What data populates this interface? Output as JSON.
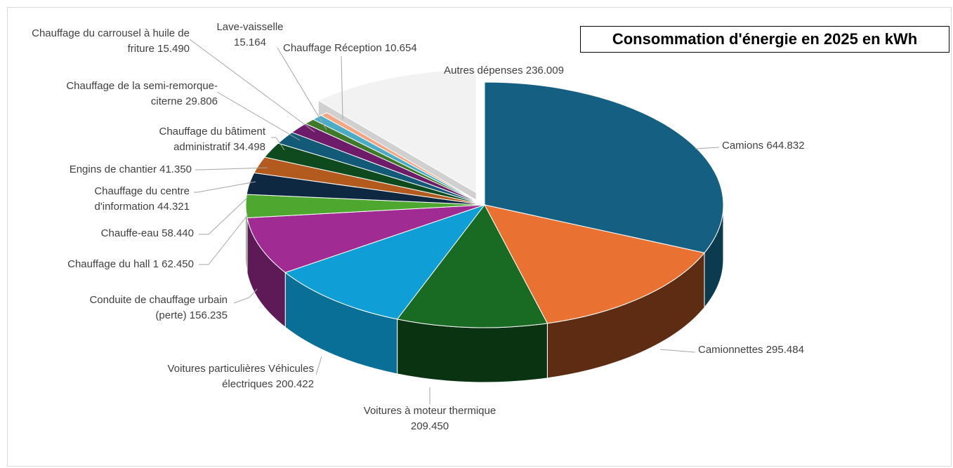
{
  "chart_data": {
    "type": "pie",
    "title": "Consommation d'énergie en 2025 en kWh",
    "slices": [
      {
        "label": "Camions",
        "value": 644832,
        "value_text": "644.832",
        "color": "#156082",
        "side": "#0c3a4f"
      },
      {
        "label": "Camionnettes",
        "value": 295484,
        "value_text": "295.484",
        "color": "#e97132",
        "side": "#5e2c12"
      },
      {
        "label": "Voitures à moteur thermique",
        "value": 209450,
        "value_text": "209.450",
        "color": "#196b24",
        "side": "#0a3312"
      },
      {
        "label": "Voitures particulières Véhicules électriques",
        "value": 200422,
        "value_text": "200.422",
        "color": "#0f9ed5",
        "side": "#0a6f97"
      },
      {
        "label": "Conduite de chauffage urbain (perte)",
        "value": 156235,
        "value_text": "156.235",
        "color": "#a02b93",
        "side": "#5e1a57"
      },
      {
        "label": "Chauffage du hall 1",
        "value": 62450,
        "value_text": "62.450",
        "color": "#4ea72e",
        "side": "#2a5e19"
      },
      {
        "label": "Chauffe-eau",
        "value": 58440,
        "value_text": "58.440",
        "color": "#0e2841",
        "side": "#071422"
      },
      {
        "label": "Chauffage du centre d'information",
        "value": 44321,
        "value_text": "44.321",
        "color": "#b35a1e",
        "side": "#5e2f10"
      },
      {
        "label": "Engins de chantier",
        "value": 41350,
        "value_text": "41.350",
        "color": "#0f4a1e",
        "side": "#072410"
      },
      {
        "label": "Chauffage du bâtiment administratif",
        "value": 34498,
        "value_text": "34.498",
        "color": "#125a78",
        "side": "#0a3242"
      },
      {
        "label": "Chauffage de la semi-remorque-citerne",
        "value": 29806,
        "value_text": "29.806",
        "color": "#6e1c6a",
        "side": "#3a0e37"
      },
      {
        "label": "Chauffage du carrousel à huile de friture",
        "value": 15490,
        "value_text": "15.490",
        "color": "#3f7a2a",
        "side": "#1f3d15"
      },
      {
        "label": "Lave-vaisselle",
        "value": 15164,
        "value_text": "15.164",
        "color": "#4bacc6",
        "side": "#2b6473"
      },
      {
        "label": "Chauffage Réception",
        "value": 10654,
        "value_text": "10.654",
        "color": "#f4a582",
        "side": "#8c5a44"
      },
      {
        "label": "Autres dépenses",
        "value": 236009,
        "value_text": "236.009",
        "color": "#f2f2f2",
        "side": "#d0d0d0",
        "exploded": true
      }
    ],
    "label_lines": [
      [
        "Camions 644.832"
      ],
      [
        "Camionnettes 295.484"
      ],
      [
        "Voitures à moteur thermique",
        "209.450"
      ],
      [
        "Voitures particulières Véhicules",
        "électriques 200.422"
      ],
      [
        "Conduite de chauffage urbain",
        "(perte) 156.235"
      ],
      [
        "Chauffage du hall 1 62.450"
      ],
      [
        "Chauffe-eau 58.440"
      ],
      [
        "Chauffage du centre",
        "d'information 44.321"
      ],
      [
        "Engins de chantier 41.350"
      ],
      [
        "Chauffage du bâtiment",
        "administratif 34.498"
      ],
      [
        "Chauffage de la semi-remorque-",
        "citerne 29.806"
      ],
      [
        "Chauffage du carrousel à huile de",
        "friture 15.490"
      ],
      [
        "Lave-vaisselle",
        "15.164"
      ],
      [
        "Chauffage Réception 10.654"
      ],
      [
        "Autres dépenses 236.009"
      ]
    ],
    "legend": "none",
    "style": "3d-exploded"
  }
}
